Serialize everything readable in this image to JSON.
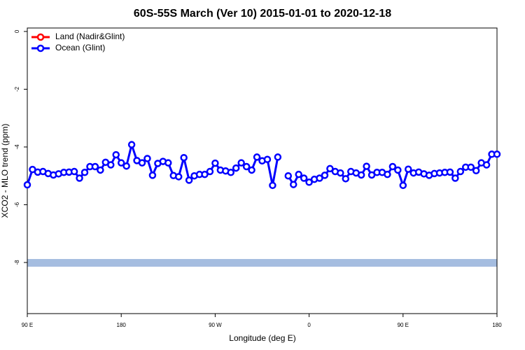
{
  "chart_data": {
    "type": "line",
    "title": "60S-55S March (Ver 10)   2015-01-01 to 2020-12-18",
    "x_label": "Longitude (deg E)",
    "y_label": "XCO2 - MLO trend (ppm)",
    "xlim": [
      90,
      540
    ],
    "ylim": [
      -9.77,
      0.12
    ],
    "xticks": [
      {
        "value": 90,
        "label": "90 E"
      },
      {
        "value": 180,
        "label": "180"
      },
      {
        "value": 270,
        "label": "90 W"
      },
      {
        "value": 360,
        "label": "0"
      },
      {
        "value": 450,
        "label": "90 E"
      },
      {
        "value": 540,
        "label": "180"
      }
    ],
    "yticks": [
      0,
      -2,
      -4,
      -6,
      -8
    ],
    "legend_position": "top-left",
    "x": [
      90,
      95,
      100,
      105,
      110,
      115,
      120,
      125,
      130,
      135,
      140,
      145,
      150,
      155,
      160,
      165,
      170,
      175,
      180,
      185,
      190,
      195,
      200,
      205,
      210,
      215,
      220,
      225,
      230,
      235,
      240,
      245,
      250,
      255,
      260,
      265,
      270,
      275,
      280,
      285,
      290,
      295,
      300,
      305,
      310,
      315,
      320,
      325,
      330,
      335,
      340,
      345,
      350,
      355,
      360,
      365,
      370,
      375,
      380,
      385,
      390,
      395,
      400,
      405,
      410,
      415,
      420,
      425,
      430,
      435,
      440,
      445,
      450,
      455,
      460,
      465,
      470,
      475,
      480,
      485,
      490,
      495,
      500,
      505,
      510,
      515,
      520,
      525,
      530,
      535,
      540
    ],
    "series": [
      {
        "name": "Land (Nadir&Glint)",
        "color": "#ff0000"
      },
      {
        "name": "Ocean (Glint)",
        "color": "#0000ff",
        "values": [
          -5.31,
          -4.78,
          -4.87,
          -4.85,
          -4.92,
          -4.97,
          -4.93,
          -4.88,
          -4.87,
          -4.85,
          -5.08,
          -4.88,
          -4.68,
          -4.68,
          -4.8,
          -4.53,
          -4.62,
          -4.27,
          -4.55,
          -4.66,
          -3.92,
          -4.47,
          -4.55,
          -4.4,
          -4.98,
          -4.57,
          -4.5,
          -4.55,
          -4.99,
          -5.03,
          -4.37,
          -5.15,
          -5,
          -4.95,
          -4.95,
          -4.85,
          -4.56,
          -4.8,
          -4.83,
          -4.88,
          -4.73,
          -4.55,
          -4.68,
          -4.8,
          -4.35,
          -4.48,
          -4.43,
          -5.33,
          -4.35,
          null,
          -5,
          -5.3,
          -4.95,
          -5.08,
          -5.22,
          -5.12,
          -5.08,
          -4.98,
          -4.75,
          -4.85,
          -4.9,
          -5.1,
          -4.85,
          -4.9,
          -4.97,
          -4.67,
          -4.97,
          -4.88,
          -4.88,
          -4.95,
          -4.68,
          -4.8,
          -5.33,
          -4.77,
          -4.9,
          -4.87,
          -4.93,
          -4.98,
          -4.92,
          -4.9,
          -4.88,
          -4.87,
          -5.08,
          -4.85,
          -4.7,
          -4.7,
          -4.82,
          -4.55,
          -4.62,
          -4.25,
          -4.25
        ]
      }
    ]
  }
}
